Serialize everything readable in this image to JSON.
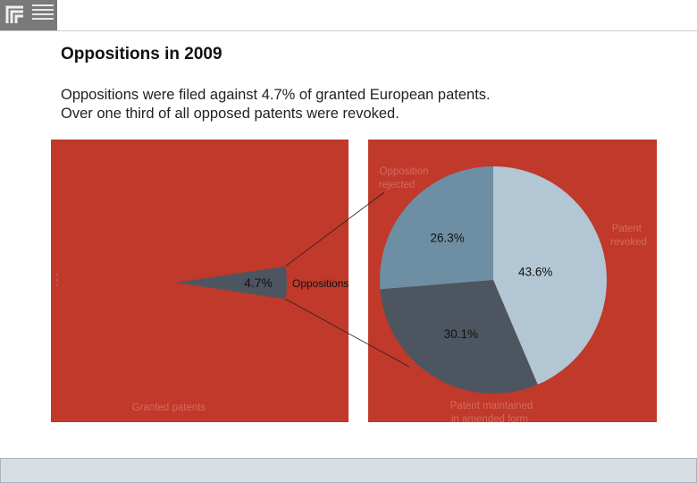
{
  "header": {
    "title": "Oppositions in 2009",
    "subtitle_lines": [
      "Oppositions were filed against 4.7% of granted European patents.",
      "Over one third of all opposed patents were revoked."
    ]
  },
  "chart_data": [
    {
      "type": "pie",
      "title": "",
      "slices": [
        {
          "label": "Oppositions",
          "value": 4.7,
          "value_label": "4.7%",
          "color": "#4d5660"
        },
        {
          "label": "Granted patents",
          "value": 95.3,
          "value_label": "",
          "color": "#c0392b"
        }
      ]
    },
    {
      "type": "pie",
      "title": "",
      "slices": [
        {
          "label": "Patent revoked",
          "value": 43.6,
          "value_label": "43.6%",
          "color": "#b3c6d3"
        },
        {
          "label": "Patent maintained in amended form",
          "value": 30.1,
          "value_label": "30.1%",
          "color": "#4d5660"
        },
        {
          "label": "Opposition rejected",
          "value": 26.3,
          "value_label": "26.3%",
          "color": "#6e8ea3"
        }
      ]
    }
  ],
  "colors": {
    "background_panel": "#c0392b",
    "faded_label": "#d46a5f"
  }
}
